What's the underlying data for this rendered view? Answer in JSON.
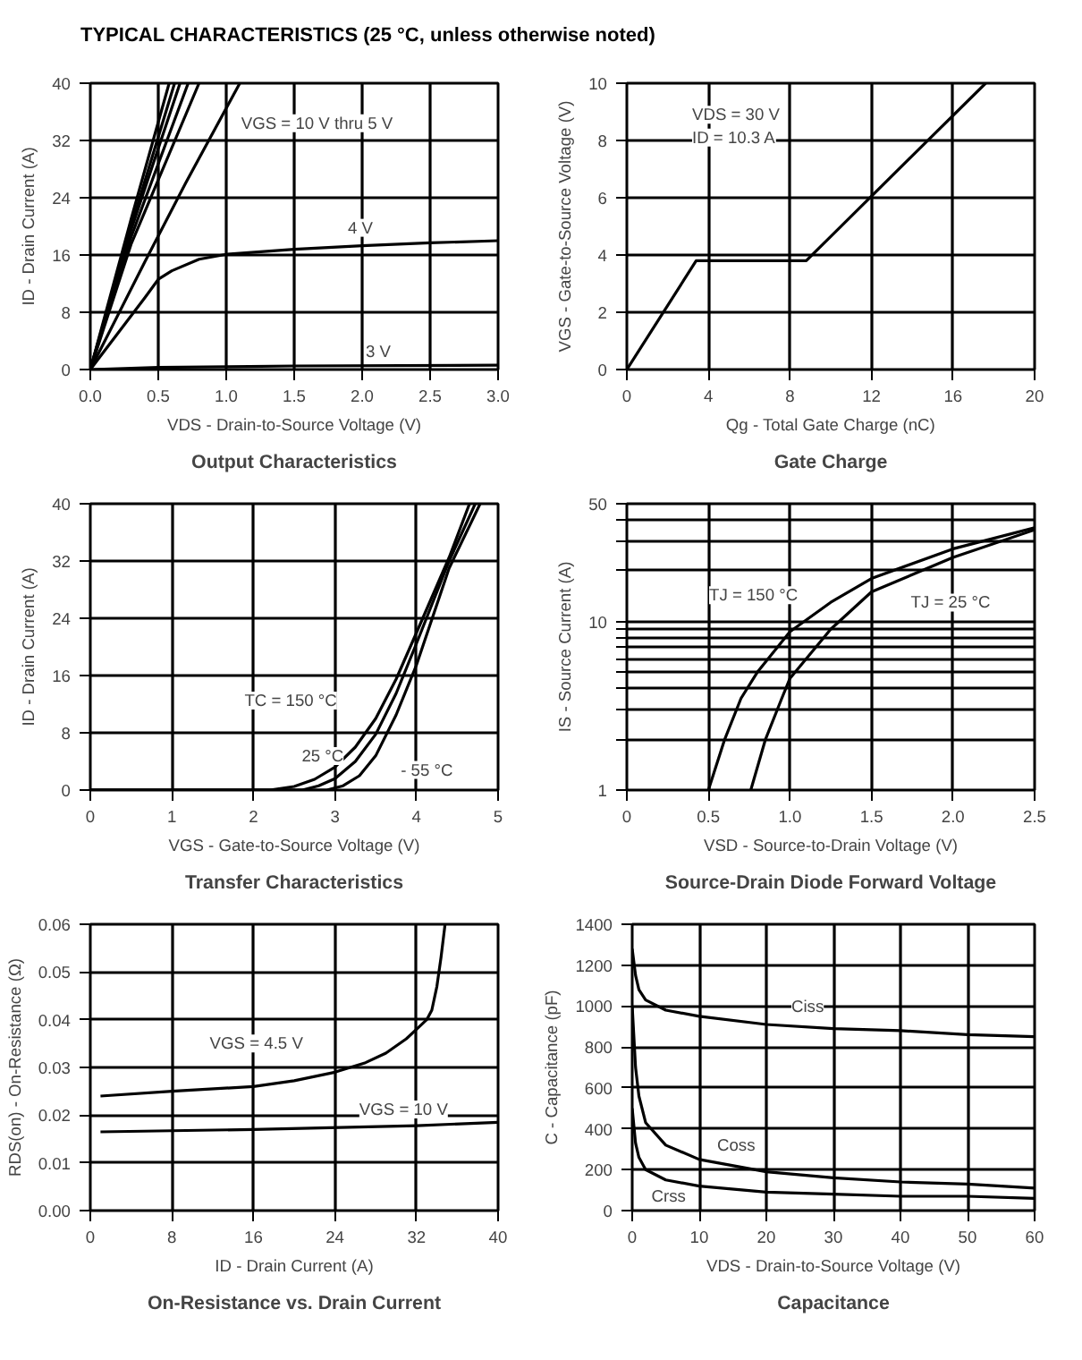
{
  "chart_data": [
    {
      "type": "line",
      "title": "Output Characteristics",
      "xlabel": "VDS - Drain-to-Source Voltage (V)",
      "ylabel": "ID - Drain Current (A)",
      "annotations": [
        "TYPICAL CHARACTERISTICS (25 °C, unless otherwise noted)",
        "VGS = 10 V thru 5 V"
      ],
      "xlim": [
        0,
        3
      ],
      "ylim": [
        0,
        40
      ],
      "grid": true,
      "xticks": [
        {
          "value": 0,
          "label": "0.0"
        },
        0.5,
        {
          "value": 1,
          "label": "1.0"
        },
        1.5,
        {
          "value": 2,
          "label": "2.0"
        },
        2.5,
        {
          "value": 3,
          "label": "3.0"
        }
      ],
      "yticks": [
        0,
        8,
        16,
        24,
        32,
        40
      ],
      "series": [
        {
          "color": "#000000",
          "x": [
            0,
            0.3,
            0.58
          ],
          "values": [
            0,
            21,
            40
          ]
        },
        {
          "color": "#000000",
          "x": [
            0,
            0.3,
            0.62
          ],
          "values": [
            0,
            20,
            40
          ]
        },
        {
          "color": "#000000",
          "x": [
            0,
            0.3,
            0.66
          ],
          "values": [
            0,
            19.5,
            40
          ]
        },
        {
          "color": "#000000",
          "x": [
            0,
            0.3,
            0.72
          ],
          "values": [
            0,
            18.5,
            40
          ]
        },
        {
          "color": "#000000",
          "x": [
            0,
            0.3,
            0.8
          ],
          "values": [
            0,
            17.5,
            40
          ]
        },
        {
          "color": "#000000",
          "x": [
            0,
            0.4,
            0.7,
            1.1
          ],
          "values": [
            0,
            15,
            26,
            40
          ]
        },
        {
          "name": "4 V",
          "color": "#000000",
          "x": [
            0,
            0.2,
            0.4,
            0.5,
            0.6,
            0.8,
            1.0,
            1.5,
            2.0,
            2.5,
            3.0
          ],
          "values": [
            0,
            5,
            10,
            12.6,
            13.8,
            15.4,
            16.1,
            16.8,
            17.3,
            17.7,
            18
          ]
        },
        {
          "name": "3 V",
          "color": "#000000",
          "x": [
            0,
            0.5,
            1.5,
            3.0
          ],
          "values": [
            0,
            0.3,
            0.5,
            0.6
          ]
        }
      ]
    },
    {
      "type": "line",
      "title": "Gate Charge",
      "xlabel": "Qg - Total Gate Charge (nC)",
      "ylabel": "VGS - Gate-to-Source Voltage (V)",
      "annotations": [
        "VDS = 30 V",
        "ID = 10.3 A"
      ],
      "xlim": [
        0,
        20
      ],
      "ylim": [
        0,
        10
      ],
      "grid": true,
      "xticks": [
        0,
        4,
        8,
        12,
        16,
        20
      ],
      "yticks": [
        0,
        2,
        4,
        6,
        8,
        10
      ],
      "series": [
        {
          "color": "#000000",
          "x": [
            0,
            3.4,
            8.8,
            17.6
          ],
          "values": [
            0,
            3.8,
            3.8,
            10
          ]
        }
      ]
    },
    {
      "type": "line",
      "title": "Transfer Characteristics",
      "xlabel": "VGS - Gate-to-Source Voltage (V)",
      "ylabel": "ID - Drain Current (A)",
      "xlim": [
        0,
        5
      ],
      "ylim": [
        0,
        40
      ],
      "grid": true,
      "xticks": [
        0,
        1,
        2,
        3,
        4,
        5
      ],
      "yticks": [
        0,
        8,
        16,
        24,
        32,
        40
      ],
      "series": [
        {
          "name": "TC = 150 °C",
          "color": "#000000",
          "x": [
            0,
            2.2,
            2.5,
            2.75,
            3.0,
            3.25,
            3.5,
            3.75,
            4.0,
            4.4,
            4.65
          ],
          "values": [
            0,
            0,
            0.5,
            1.5,
            3.2,
            6,
            10,
            15.5,
            22,
            32.5,
            40
          ]
        },
        {
          "name": "25 °C",
          "color": "#000000",
          "x": [
            0,
            2.6,
            2.8,
            3.0,
            3.25,
            3.5,
            3.75,
            4.0,
            4.4,
            4.72
          ],
          "values": [
            0,
            0,
            0.6,
            1.6,
            4,
            7.8,
            13.5,
            20.5,
            32,
            40
          ]
        },
        {
          "name": "- 55 °C",
          "color": "#000000",
          "x": [
            0,
            2.9,
            3.1,
            3.3,
            3.5,
            3.75,
            4.0,
            4.4,
            4.78
          ],
          "values": [
            0,
            0,
            0.6,
            2,
            4.8,
            10.5,
            17.5,
            31,
            40
          ]
        }
      ]
    },
    {
      "type": "line",
      "title": "Source-Drain Diode Forward Voltage",
      "xlabel": "VSD - Source-to-Drain Voltage (V)",
      "ylabel": "IS - Source Current (A)",
      "log": "y",
      "xlim": [
        0,
        2.5
      ],
      "ylim": [
        1,
        50
      ],
      "grid": true,
      "xticks": [
        0,
        0.5,
        {
          "value": 1,
          "label": "1.0"
        },
        1.5,
        {
          "value": 2,
          "label": "2.0"
        },
        2.5
      ],
      "yticks": [
        1,
        {
          "value": 2,
          "label": null
        },
        {
          "value": 3,
          "label": null
        },
        {
          "value": 4,
          "label": null
        },
        {
          "value": 5,
          "label": null
        },
        {
          "value": 6,
          "label": null
        },
        {
          "value": 7,
          "label": null
        },
        {
          "value": 8,
          "label": null
        },
        {
          "value": 9,
          "label": null
        },
        10,
        {
          "value": 20,
          "label": null
        },
        {
          "value": 30,
          "label": null
        },
        {
          "value": 40,
          "label": null
        },
        50
      ],
      "series": [
        {
          "name": "TJ = 150 °C",
          "color": "#000000",
          "x": [
            0.5,
            0.6,
            0.7,
            0.8,
            1.0,
            1.25,
            1.5,
            2.0,
            2.5
          ],
          "values": [
            1,
            2,
            3.5,
            5,
            8.7,
            13,
            18,
            27,
            36
          ]
        },
        {
          "name": "TJ = 25 °C",
          "color": "#000000",
          "x": [
            0.76,
            0.85,
            0.95,
            1.0,
            1.25,
            1.5,
            2.0,
            2.5
          ],
          "values": [
            1,
            2,
            3.5,
            4.6,
            9,
            15,
            24,
            35
          ]
        }
      ]
    },
    {
      "type": "line",
      "title": "On-Resistance vs. Drain Current",
      "xlabel": "ID - Drain Current (A)",
      "ylabel": "RDS(on) - On-Resistance (Ω)",
      "xlim": [
        0,
        40
      ],
      "ylim": [
        0,
        0.06
      ],
      "grid": true,
      "xticks": [
        0,
        8,
        16,
        24,
        32,
        40
      ],
      "yticks": [
        {
          "value": 0,
          "label": "0.00"
        },
        0.01,
        0.02,
        0.03,
        0.04,
        0.05,
        0.06
      ],
      "series": [
        {
          "name": "VGS = 4.5 V",
          "color": "#000000",
          "x": [
            1,
            8,
            16,
            20,
            24,
            27,
            29,
            31,
            32,
            33,
            33.5,
            34,
            34.4,
            34.8
          ],
          "values": [
            0.024,
            0.025,
            0.026,
            0.0272,
            0.029,
            0.031,
            0.033,
            0.036,
            0.038,
            0.04,
            0.042,
            0.047,
            0.053,
            0.06
          ]
        },
        {
          "name": "VGS = 10 V",
          "color": "#000000",
          "x": [
            1,
            16,
            32,
            40
          ],
          "values": [
            0.0165,
            0.017,
            0.0178,
            0.0185
          ]
        }
      ]
    },
    {
      "type": "line",
      "title": "Capacitance",
      "xlabel": "VDS - Drain-to-Source Voltage (V)",
      "ylabel": "C - Capacitance (pF)",
      "xlim": [
        0,
        60
      ],
      "ylim": [
        0,
        1400
      ],
      "grid": true,
      "xticks": [
        0,
        10,
        20,
        30,
        40,
        50,
        60
      ],
      "yticks": [
        0,
        200,
        400,
        600,
        800,
        1000,
        1200,
        1400
      ],
      "series": [
        {
          "name": "Ciss",
          "color": "#000000",
          "x": [
            0,
            0.5,
            1,
            2,
            5,
            10,
            20,
            30,
            40,
            50,
            60
          ],
          "values": [
            1280,
            1150,
            1080,
            1030,
            980,
            950,
            910,
            890,
            880,
            860,
            850
          ]
        },
        {
          "name": "Coss",
          "color": "#000000",
          "x": [
            0,
            0.5,
            1,
            2,
            5,
            10,
            20,
            30,
            40,
            50,
            60
          ],
          "values": [
            1000,
            700,
            560,
            430,
            320,
            250,
            190,
            160,
            140,
            130,
            110
          ]
        },
        {
          "name": "Crss",
          "color": "#000000",
          "x": [
            0,
            0.5,
            1,
            2,
            5,
            10,
            20,
            30,
            40,
            50,
            60
          ],
          "values": [
            500,
            330,
            260,
            200,
            150,
            120,
            90,
            80,
            70,
            70,
            60
          ]
        }
      ]
    }
  ]
}
